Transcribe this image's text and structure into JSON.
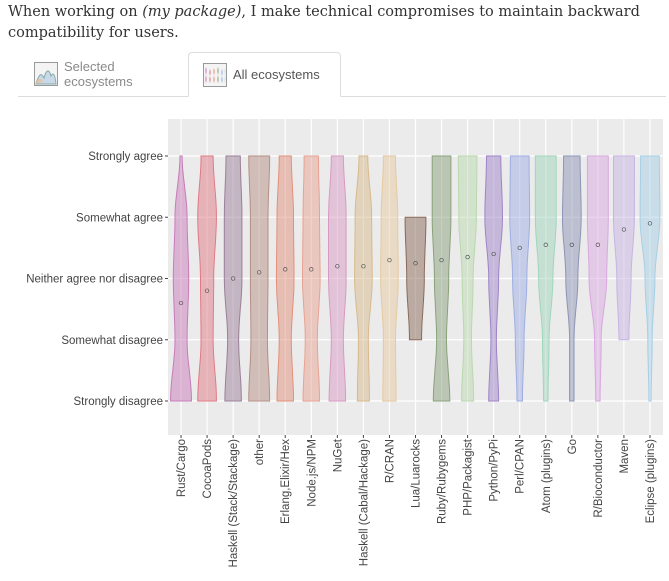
{
  "question": {
    "prefix": "When working on ",
    "package": "(my package)",
    "suffix": ", I make technical compromises to maintain backward compatibility for users."
  },
  "tabs": [
    {
      "label": "Selected ecosystems",
      "icon": "violin-thumbnail-icon",
      "active": false
    },
    {
      "label": "All ecosystems",
      "icon": "multi-violin-thumbnail-icon",
      "active": true
    }
  ],
  "chart_data": {
    "type": "violin",
    "title": "",
    "xlabel": "",
    "ylabel": "",
    "ytick_labels": [
      "Strongly disagree",
      "Somewhat disagree",
      "Neither agree nor disagree",
      "Somewhat agree",
      "Strongly agree"
    ],
    "ylim": [
      1,
      5
    ],
    "grid": true,
    "categories": [
      "Rust/Cargo",
      "CocoaPods",
      "Haskell (Stack/Stackage)",
      "other",
      "Erlang,Elixir/Hex",
      "Node.js/NPM",
      "NuGet",
      "Haskell (Cabal/Hackage)",
      "R/CRAN",
      "Lua/Luarocks",
      "Ruby/Rubygems",
      "PHP/Packagist",
      "Python/PyPi",
      "Perl/CPAN",
      "Atom (plugins)",
      "Go",
      "R/Bioconductor",
      "Maven",
      "Eclipse (plugins)"
    ],
    "colors": [
      "#c77cb8",
      "#e07a86",
      "#9b7f98",
      "#b58f84",
      "#e1907a",
      "#e8a291",
      "#d89ac3",
      "#d8b98c",
      "#e5caa0",
      "#8a6a5a",
      "#8aa27b",
      "#b9d9ad",
      "#9f84c7",
      "#9eaee3",
      "#9fd6bc",
      "#8e94b6",
      "#d9a7e0",
      "#c7b3e3",
      "#a6cfe6"
    ],
    "series": [
      {
        "name": "",
        "min": 1,
        "max": 5,
        "mean": 2.6,
        "widths": [
          0.95,
          0.55,
          0.7,
          0.55,
          0.1
        ]
      },
      {
        "name": "",
        "min": 1,
        "max": 5,
        "mean": 2.8,
        "widths": [
          0.85,
          0.55,
          0.6,
          0.85,
          0.55
        ]
      },
      {
        "name": "",
        "min": 1,
        "max": 5,
        "mean": 3.0,
        "widths": [
          0.75,
          0.5,
          0.8,
          0.8,
          0.65
        ]
      },
      {
        "name": "",
        "min": 1,
        "max": 5,
        "mean": 3.1,
        "widths": [
          0.95,
          0.75,
          0.8,
          0.8,
          0.95
        ]
      },
      {
        "name": "",
        "min": 1,
        "max": 5,
        "mean": 3.15,
        "widths": [
          0.75,
          0.55,
          0.8,
          0.75,
          0.55
        ]
      },
      {
        "name": "",
        "min": 1,
        "max": 5,
        "mean": 3.15,
        "widths": [
          0.75,
          0.55,
          0.8,
          0.75,
          0.65
        ]
      },
      {
        "name": "",
        "min": 1,
        "max": 5,
        "mean": 3.2,
        "widths": [
          0.75,
          0.55,
          0.8,
          0.8,
          0.55
        ]
      },
      {
        "name": "",
        "min": 1,
        "max": 5,
        "mean": 3.2,
        "widths": [
          0.55,
          0.45,
          0.8,
          0.75,
          0.4
        ]
      },
      {
        "name": "",
        "min": 1,
        "max": 5,
        "mean": 3.3,
        "widths": [
          0.6,
          0.55,
          0.8,
          0.75,
          0.55
        ]
      },
      {
        "name": "",
        "min": 2,
        "max": 4,
        "mean": 3.25,
        "widths": [
          0.0,
          0.55,
          0.8,
          0.95,
          0.0
        ]
      },
      {
        "name": "",
        "min": 1,
        "max": 5,
        "mean": 3.3,
        "widths": [
          0.75,
          0.45,
          0.65,
          0.85,
          0.85
        ]
      },
      {
        "name": "",
        "min": 1,
        "max": 5,
        "mean": 3.35,
        "widths": [
          0.55,
          0.35,
          0.5,
          0.8,
          0.85
        ]
      },
      {
        "name": "",
        "min": 1,
        "max": 5,
        "mean": 3.4,
        "widths": [
          0.45,
          0.25,
          0.45,
          0.8,
          0.65
        ]
      },
      {
        "name": "",
        "min": 1,
        "max": 5,
        "mean": 3.5,
        "widths": [
          0.25,
          0.4,
          0.65,
          0.9,
          0.85
        ]
      },
      {
        "name": "",
        "min": 1,
        "max": 5,
        "mean": 3.55,
        "widths": [
          0.2,
          0.3,
          0.65,
          0.95,
          0.95
        ]
      },
      {
        "name": "",
        "min": 1,
        "max": 5,
        "mean": 3.55,
        "widths": [
          0.2,
          0.2,
          0.55,
          0.85,
          0.75
        ]
      },
      {
        "name": "",
        "min": 1,
        "max": 5,
        "mean": 3.55,
        "widths": [
          0.2,
          0.3,
          0.8,
          0.95,
          0.95
        ]
      },
      {
        "name": "",
        "min": 2,
        "max": 5,
        "mean": 3.8,
        "widths": [
          0.0,
          0.45,
          0.65,
          0.95,
          0.95
        ]
      },
      {
        "name": "",
        "min": 1,
        "max": 5,
        "mean": 3.9,
        "widths": [
          0.1,
          0.2,
          0.45,
          0.9,
          0.85
        ]
      }
    ]
  }
}
